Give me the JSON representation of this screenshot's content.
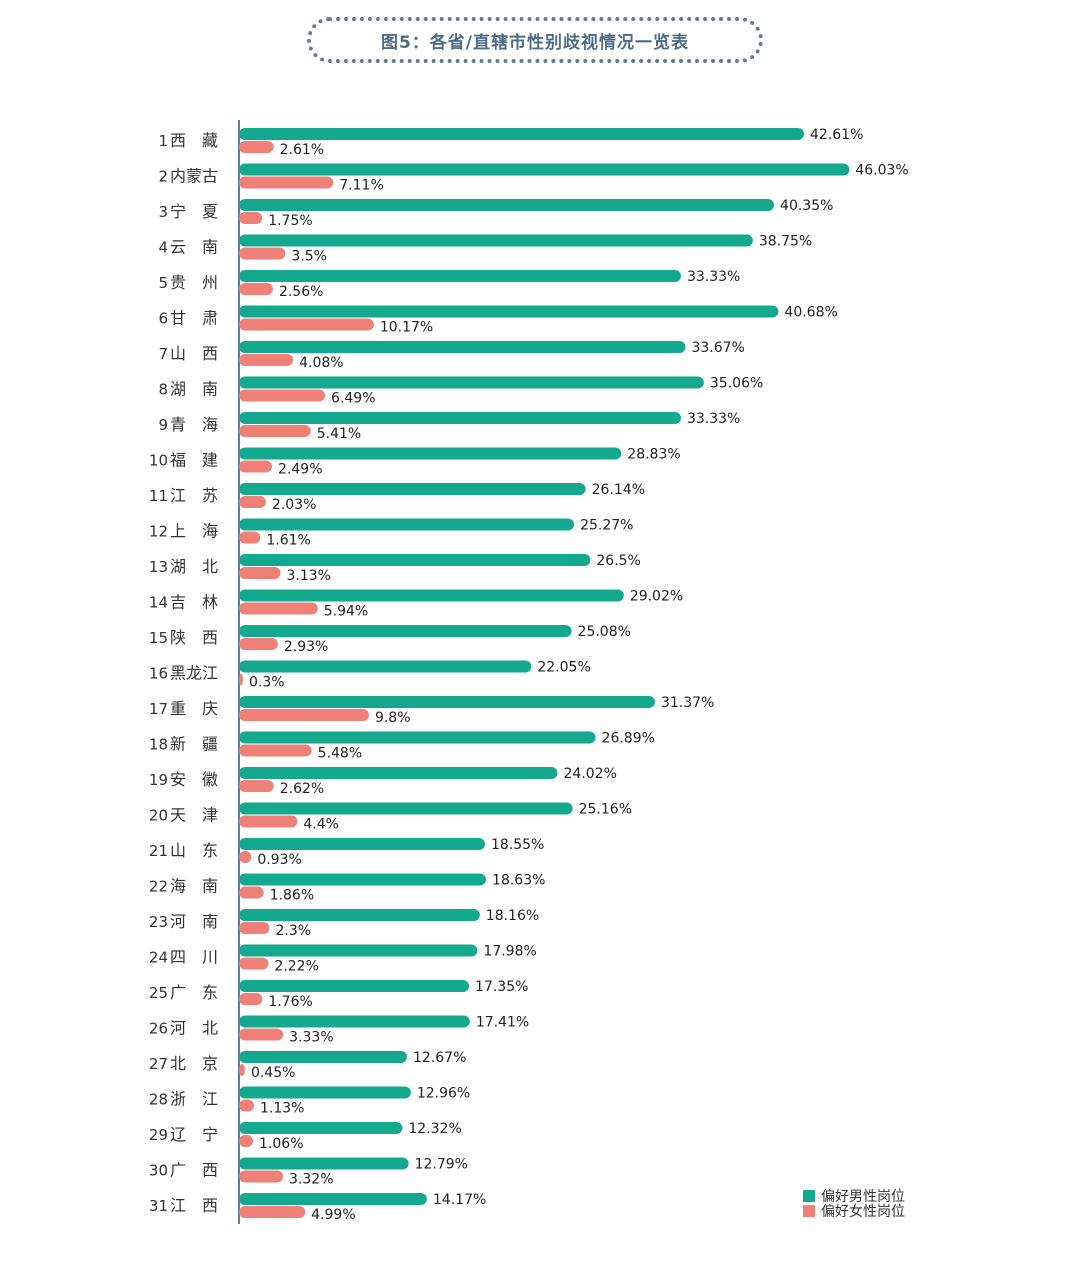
{
  "title": "图5：各省/直辖市性别歧视情况一览表",
  "chart_data": {
    "type": "bar",
    "orientation": "horizontal",
    "colors": {
      "male": "#14a98f",
      "female": "#ee8077",
      "axis": "#5e7d96"
    },
    "legend_position": "bottom-right",
    "categories": [
      {
        "rank": "1",
        "name": "西　藏"
      },
      {
        "rank": "2",
        "name": "内蒙古"
      },
      {
        "rank": "3",
        "name": "宁　夏"
      },
      {
        "rank": "4",
        "name": "云　南"
      },
      {
        "rank": "5",
        "name": "贵　州"
      },
      {
        "rank": "6",
        "name": "甘　肃"
      },
      {
        "rank": "7",
        "name": "山　西"
      },
      {
        "rank": "8",
        "name": "湖　南"
      },
      {
        "rank": "9",
        "name": "青　海"
      },
      {
        "rank": "10",
        "name": "福　建"
      },
      {
        "rank": "11",
        "name": "江　苏"
      },
      {
        "rank": "12",
        "name": "上　海"
      },
      {
        "rank": "13",
        "name": "湖　北"
      },
      {
        "rank": "14",
        "name": "吉　林"
      },
      {
        "rank": "15",
        "name": "陕　西"
      },
      {
        "rank": "16",
        "name": "黑龙江"
      },
      {
        "rank": "17",
        "name": "重　庆"
      },
      {
        "rank": "18",
        "name": "新　疆"
      },
      {
        "rank": "19",
        "name": "安　徽"
      },
      {
        "rank": "20",
        "name": "天　津"
      },
      {
        "rank": "21",
        "name": "山　东"
      },
      {
        "rank": "22",
        "name": "海　南"
      },
      {
        "rank": "23",
        "name": "河　南"
      },
      {
        "rank": "24",
        "name": "四　川"
      },
      {
        "rank": "25",
        "name": "广　东"
      },
      {
        "rank": "26",
        "name": "河　北"
      },
      {
        "rank": "27",
        "name": "北　京"
      },
      {
        "rank": "28",
        "name": "浙　江"
      },
      {
        "rank": "29",
        "name": "辽　宁"
      },
      {
        "rank": "30",
        "name": "广　西"
      },
      {
        "rank": "31",
        "name": "江　西"
      }
    ],
    "series": [
      {
        "name": "偏好男性岗位",
        "key": "male",
        "values": [
          42.61,
          46.03,
          40.35,
          38.75,
          33.33,
          40.68,
          33.67,
          35.06,
          33.33,
          28.83,
          26.14,
          25.27,
          26.5,
          29.02,
          25.08,
          22.05,
          31.37,
          26.89,
          24.02,
          25.16,
          18.55,
          18.63,
          18.16,
          17.98,
          17.35,
          17.41,
          12.67,
          12.96,
          12.32,
          12.79,
          14.17
        ],
        "labels": [
          "42.61%",
          "46.03%",
          "40.35%",
          "38.75%",
          "33.33%",
          "40.68%",
          "33.67%",
          "35.06%",
          "33.33%",
          "28.83%",
          "26.14%",
          "25.27%",
          "26.5%",
          "29.02%",
          "25.08%",
          "22.05%",
          "31.37%",
          "26.89%",
          "24.02%",
          "25.16%",
          "18.55%",
          "18.63%",
          "18.16%",
          "17.98%",
          "17.35%",
          "17.41%",
          "12.67%",
          "12.96%",
          "12.32%",
          "12.79%",
          "14.17%"
        ]
      },
      {
        "name": "偏好女性岗位",
        "key": "female",
        "values": [
          2.61,
          7.11,
          1.75,
          3.5,
          2.56,
          10.17,
          4.08,
          6.49,
          5.41,
          2.49,
          2.03,
          1.61,
          3.13,
          5.94,
          2.93,
          0.3,
          9.8,
          5.48,
          2.62,
          4.4,
          0.93,
          1.86,
          2.3,
          2.22,
          1.76,
          3.33,
          0.45,
          1.13,
          1.06,
          3.32,
          4.99
        ],
        "labels": [
          "2.61%",
          "7.11%",
          "1.75%",
          "3.5%",
          "2.56%",
          "10.17%",
          "4.08%",
          "6.49%",
          "5.41%",
          "2.49%",
          "2.03%",
          "1.61%",
          "3.13%",
          "5.94%",
          "2.93%",
          "0.3%",
          "9.8%",
          "5.48%",
          "2.62%",
          "4.4%",
          "0.93%",
          "1.86%",
          "2.3%",
          "2.22%",
          "1.76%",
          "3.33%",
          "0.45%",
          "1.13%",
          "1.06%",
          "3.32%",
          "4.99%"
        ]
      }
    ]
  }
}
